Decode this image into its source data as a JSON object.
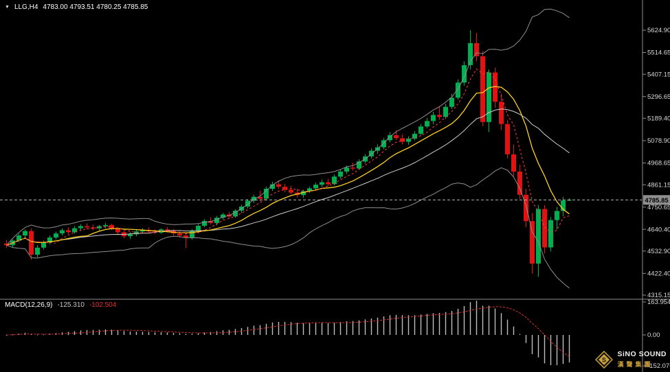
{
  "header": {
    "marker": "▼",
    "symbol": "LLG,H4",
    "ohlc": "4783.00 4793.51 4780.25 4785.85"
  },
  "price_scale": {
    "current": "4785.85",
    "ticks": [
      "5624.90",
      "5514.65",
      "5407.15",
      "5296.65",
      "5189.40",
      "5078.90",
      "4968.65",
      "4861.15",
      "4750.65",
      "4640.40",
      "4532.90",
      "4422.40",
      "4315.15"
    ]
  },
  "macd_panel": {
    "label": "MACD(12,26,9)",
    "macd_value": "-125.310",
    "signal_value": "-102.504",
    "ticks": [
      "163.954",
      "0.00",
      "-152.076"
    ]
  },
  "logo": {
    "name": "SiNO SOUND",
    "chinese": "漢聲集團"
  },
  "colors": {
    "bg": "#000000",
    "up": "#00b050",
    "down": "#e01212",
    "band": "#8f8f8f",
    "mid": "#cfcfcf",
    "ma_yellow": "#ffd21e",
    "ma_red": "#ff4040",
    "hist": "#bfbfbf",
    "signal": "#e03030",
    "axis_text": "#d8d8d8",
    "axis_line": "#8f8f8f",
    "price_line": "#b8b8b8",
    "badge_bg": "#8f8f8f",
    "badge_text": "#000000"
  },
  "chart_data": {
    "type": "candlestick",
    "symbol": "LLG",
    "timeframe": "H4",
    "ylim": [
      4315.15,
      5624.9
    ],
    "macd_ylim": [
      -152.076,
      163.954
    ],
    "legend_position": "none",
    "grid": false,
    "current_price": 4785.85,
    "overlays": {
      "bollinger": {
        "period": 20,
        "deviation": 2
      },
      "ma_fast_yellow": {
        "period": 10
      },
      "ma_faster_red_dotted": {
        "period": 5
      },
      "macd": {
        "fast": 12,
        "slow": 26,
        "signal": 9,
        "macd_value": -125.31,
        "signal_value": -102.504
      }
    },
    "ohlc": [
      [
        4570,
        4588,
        4548,
        4562
      ],
      [
        4562,
        4592,
        4552,
        4585
      ],
      [
        4585,
        4620,
        4576,
        4610
      ],
      [
        4610,
        4640,
        4598,
        4632
      ],
      [
        4632,
        4645,
        4490,
        4515
      ],
      [
        4515,
        4562,
        4502,
        4550
      ],
      [
        4550,
        4586,
        4540,
        4576
      ],
      [
        4576,
        4610,
        4566,
        4600
      ],
      [
        4600,
        4630,
        4590,
        4620
      ],
      [
        4620,
        4646,
        4610,
        4636
      ],
      [
        4636,
        4650,
        4616,
        4626
      ],
      [
        4626,
        4656,
        4620,
        4646
      ],
      [
        4646,
        4666,
        4632,
        4656
      ],
      [
        4656,
        4670,
        4640,
        4650
      ],
      [
        4650,
        4664,
        4636,
        4645
      ],
      [
        4645,
        4662,
        4632,
        4656
      ],
      [
        4656,
        4672,
        4646,
        4662
      ],
      [
        4662,
        4668,
        4636,
        4642
      ],
      [
        4642,
        4652,
        4616,
        4626
      ],
      [
        4626,
        4636,
        4596,
        4606
      ],
      [
        4606,
        4626,
        4592,
        4616
      ],
      [
        4616,
        4640,
        4606,
        4630
      ],
      [
        4630,
        4646,
        4620,
        4636
      ],
      [
        4636,
        4650,
        4624,
        4630
      ],
      [
        4630,
        4642,
        4616,
        4624
      ],
      [
        4624,
        4646,
        4618,
        4640
      ],
      [
        4640,
        4652,
        4626,
        4632
      ],
      [
        4632,
        4642,
        4610,
        4620
      ],
      [
        4620,
        4636,
        4600,
        4610
      ],
      [
        4610,
        4622,
        4548,
        4598
      ],
      [
        4598,
        4642,
        4590,
        4634
      ],
      [
        4634,
        4666,
        4626,
        4658
      ],
      [
        4658,
        4690,
        4650,
        4682
      ],
      [
        4682,
        4700,
        4664,
        4672
      ],
      [
        4672,
        4706,
        4660,
        4698
      ],
      [
        4698,
        4722,
        4688,
        4714
      ],
      [
        4714,
        4726,
        4694,
        4704
      ],
      [
        4704,
        4740,
        4698,
        4733
      ],
      [
        4733,
        4762,
        4722,
        4753
      ],
      [
        4753,
        4790,
        4744,
        4782
      ],
      [
        4782,
        4812,
        4770,
        4801
      ],
      [
        4801,
        4832,
        4780,
        4792
      ],
      [
        4792,
        4852,
        4786,
        4841
      ],
      [
        4841,
        4876,
        4830,
        4863
      ],
      [
        4863,
        4882,
        4840,
        4851
      ],
      [
        4851,
        4866,
        4824,
        4836
      ],
      [
        4836,
        4856,
        4814,
        4822
      ],
      [
        4822,
        4840,
        4798,
        4810
      ],
      [
        4810,
        4836,
        4796,
        4829
      ],
      [
        4829,
        4852,
        4820,
        4843
      ],
      [
        4843,
        4871,
        4834,
        4861
      ],
      [
        4861,
        4886,
        4850,
        4873
      ],
      [
        4873,
        4890,
        4854,
        4864
      ],
      [
        4864,
        4912,
        4858,
        4901
      ],
      [
        4901,
        4936,
        4890,
        4926
      ],
      [
        4926,
        4956,
        4914,
        4946
      ],
      [
        4946,
        4971,
        4930,
        4941
      ],
      [
        4941,
        4986,
        4934,
        4976
      ],
      [
        4976,
        5012,
        4966,
        5001
      ],
      [
        5001,
        5041,
        4990,
        5029
      ],
      [
        5029,
        5061,
        5014,
        5046
      ],
      [
        5046,
        5092,
        5036,
        5081
      ],
      [
        5081,
        5121,
        5070,
        5106
      ],
      [
        5106,
        5131,
        5081,
        5091
      ],
      [
        5091,
        5111,
        5060,
        5073
      ],
      [
        5073,
        5101,
        5058,
        5089
      ],
      [
        5089,
        5126,
        5080,
        5113
      ],
      [
        5113,
        5161,
        5104,
        5149
      ],
      [
        5149,
        5191,
        5140,
        5176
      ],
      [
        5176,
        5221,
        5160,
        5206
      ],
      [
        5206,
        5251,
        5181,
        5196
      ],
      [
        5196,
        5261,
        5186,
        5246
      ],
      [
        5246,
        5311,
        5236,
        5291
      ],
      [
        5291,
        5381,
        5281,
        5366
      ],
      [
        5366,
        5471,
        5351,
        5452
      ],
      [
        5452,
        5624.9,
        5431,
        5561
      ],
      [
        5561,
        5611,
        5471,
        5496
      ],
      [
        5496,
        5521,
        5151,
        5171
      ],
      [
        5171,
        5431,
        5121,
        5416
      ],
      [
        5416,
        5441,
        5241,
        5271
      ],
      [
        5271,
        5311,
        5131,
        5161
      ],
      [
        5161,
        5181,
        4991,
        5011
      ],
      [
        5011,
        5061,
        4901,
        4926
      ],
      [
        4926,
        4961,
        4791,
        4811
      ],
      [
        4811,
        4841,
        4651,
        4681
      ],
      [
        4681,
        4721,
        4421,
        4471
      ],
      [
        4471,
        4761,
        4406,
        4741
      ],
      [
        4741,
        4761,
        4521,
        4551
      ],
      [
        4551,
        4701,
        4531,
        4686
      ],
      [
        4686,
        4751,
        4641,
        4731
      ],
      [
        4731,
        4801,
        4706,
        4783
      ],
      [
        4783,
        4793.51,
        4780.25,
        4785.85
      ]
    ]
  }
}
